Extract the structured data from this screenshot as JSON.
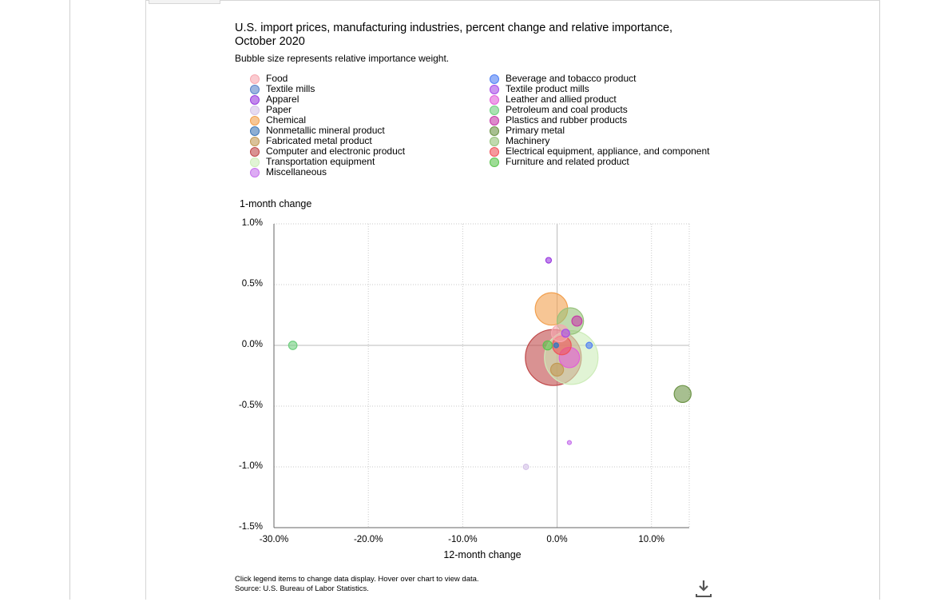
{
  "chart_data": {
    "type": "scatter",
    "title": "U.S. import prices, manufacturing industries, percent change and relative importance, October 2020",
    "subtitle": "Bubble size represents relative importance weight.",
    "xlabel": "12-month change",
    "ylabel": "1-month change",
    "xlim": [
      -30,
      14
    ],
    "ylim": [
      -1.5,
      1.0
    ],
    "x_ticks": [
      "-30.0%",
      "-20.0%",
      "-10.0%",
      "0.0%",
      "10.0%"
    ],
    "x_tick_values": [
      -30,
      -20,
      -10,
      0,
      10
    ],
    "y_ticks": [
      "1.0%",
      "0.5%",
      "0.0%",
      "-0.5%",
      "-1.0%",
      "-1.5%"
    ],
    "y_tick_values": [
      1.0,
      0.5,
      0.0,
      -0.5,
      -1.0,
      -1.5
    ],
    "grid": true,
    "legend_position": "top",
    "series": [
      {
        "name": "Food",
        "color": "#f7a8b0",
        "x": 0.3,
        "y": 0.1,
        "weight": 4.5
      },
      {
        "name": "Beverage and tobacco product",
        "color": "#4f7ff5",
        "x": 3.4,
        "y": 0.0,
        "weight": 0.6
      },
      {
        "name": "Textile mills",
        "color": "#5a83c9",
        "x": -0.1,
        "y": 0.0,
        "weight": 0.4
      },
      {
        "name": "Textile product mills",
        "color": "#a84ce8",
        "x": 0.9,
        "y": 0.1,
        "weight": 1.0
      },
      {
        "name": "Apparel",
        "color": "#9a3be0",
        "x": -0.9,
        "y": 0.7,
        "weight": 0.5
      },
      {
        "name": "Leather and allied product",
        "color": "#e25fd8",
        "x": 1.3,
        "y": -0.1,
        "weight": 6.5
      },
      {
        "name": "Paper",
        "color": "#d5c3e8",
        "x": -3.3,
        "y": -1.0,
        "weight": 0.45
      },
      {
        "name": "Petroleum and coal products",
        "color": "#6fcf7f",
        "x": -28.0,
        "y": 0.0,
        "weight": 1.1
      },
      {
        "name": "Chemical",
        "color": "#f2a04f",
        "x": -0.6,
        "y": 0.3,
        "weight": 16.5
      },
      {
        "name": "Plastics and rubber products",
        "color": "#c63aa8",
        "x": 2.1,
        "y": 0.2,
        "weight": 1.6
      },
      {
        "name": "Nonmetallic mineral product",
        "color": "#3f78b5",
        "x": -0.1,
        "y": 0.0,
        "weight": 0.3
      },
      {
        "name": "Primary metal",
        "color": "#6c9446",
        "x": 13.3,
        "y": -0.4,
        "weight": 4.5
      },
      {
        "name": "Fabricated metal product",
        "color": "#c29a55",
        "x": 0.0,
        "y": -0.2,
        "weight": 2.6
      },
      {
        "name": "Machinery",
        "color": "#96c27a",
        "x": 1.4,
        "y": 0.2,
        "weight": 11.0
      },
      {
        "name": "Computer and electronic product",
        "color": "#c0494a",
        "x": -0.4,
        "y": -0.1,
        "weight": 49.0
      },
      {
        "name": "Electrical equipment, appliance, and component",
        "color": "#f0535a",
        "x": 0.5,
        "y": 0.0,
        "weight": 5.5
      },
      {
        "name": "Transportation equipment",
        "color": "#cdecb9",
        "x": 1.5,
        "y": -0.1,
        "weight": 45.0
      },
      {
        "name": "Furniture and related product",
        "color": "#5cc44f",
        "x": -1.0,
        "y": 0.0,
        "weight": 1.3
      },
      {
        "name": "Miscellaneous",
        "color": "#c773ec",
        "x": 1.3,
        "y": -0.8,
        "weight": 0.15
      }
    ]
  },
  "footer": {
    "line1": "Click legend items to change data display. Hover over chart to view data.",
    "line2": "Source: U.S. Bureau of Labor Statistics."
  },
  "icons": {
    "download": "download-icon"
  }
}
